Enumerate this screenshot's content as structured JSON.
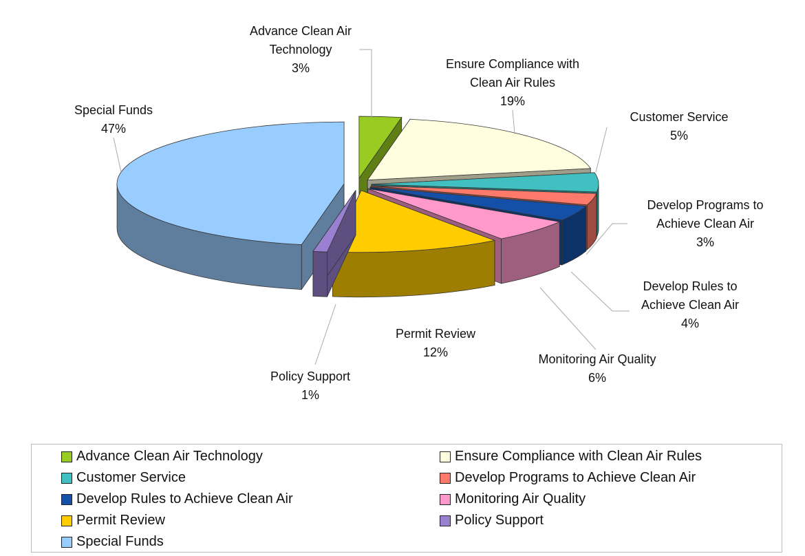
{
  "chart_data": {
    "type": "pie",
    "categories": [
      "Advance Clean Air Technology",
      "Ensure Compliance with Clean Air Rules",
      "Customer Service",
      "Develop Programs to Achieve Clean Air",
      "Develop Rules to Achieve Clean Air",
      "Monitoring Air Quality",
      "Permit Review",
      "Policy Support",
      "Special Funds"
    ],
    "values": [
      3,
      19,
      5,
      3,
      4,
      6,
      12,
      1,
      47
    ],
    "value_labels": [
      "3%",
      "19%",
      "5%",
      "3%",
      "4%",
      "6%",
      "12%",
      "1%",
      "47%"
    ],
    "colors": [
      "#99cc22",
      "#ffffe0",
      "#40c0c0",
      "#ff7a6a",
      "#1450a8",
      "#ff99cc",
      "#ffcc00",
      "#9a80d0",
      "#99ccff"
    ],
    "legend": "bottom"
  }
}
